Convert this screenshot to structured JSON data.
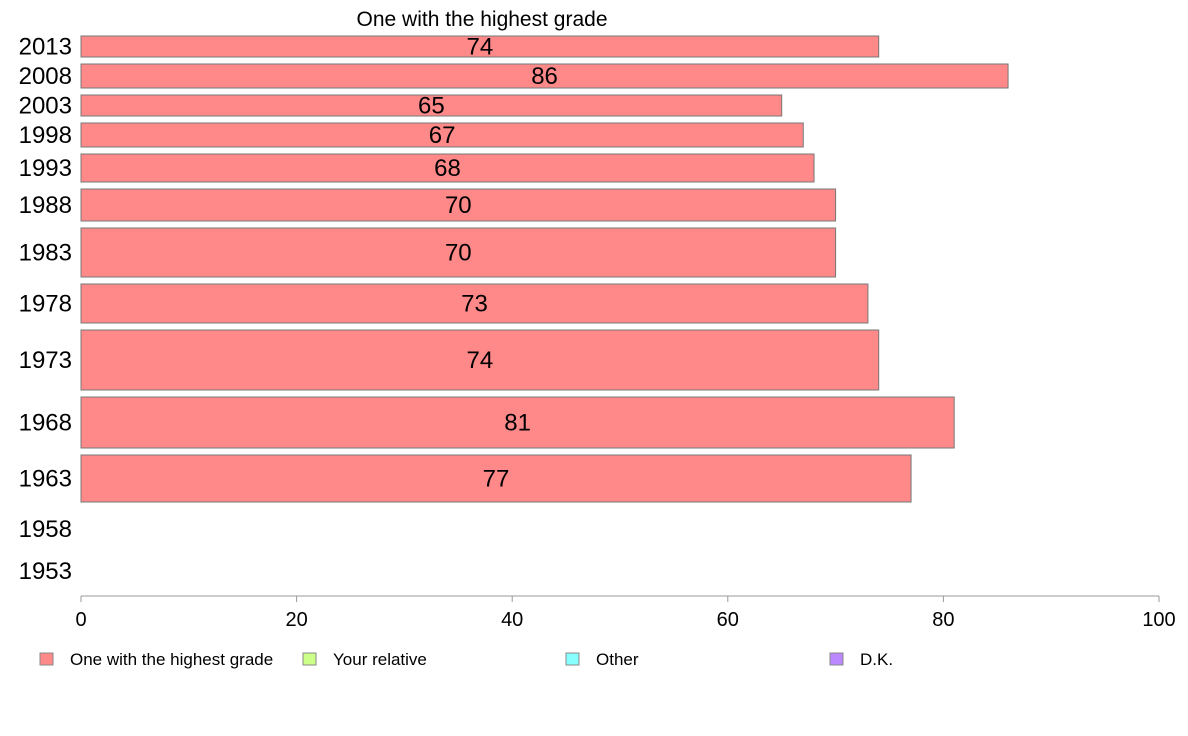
{
  "chart_data": {
    "type": "bar",
    "orientation": "horizontal",
    "title": "One with the highest grade",
    "categories": [
      "2013",
      "2008",
      "2003",
      "1998",
      "1993",
      "1988",
      "1983",
      "1978",
      "1973",
      "1968",
      "1963",
      "1958",
      "1953"
    ],
    "series": [
      {
        "name": "One with the highest grade",
        "color": "#ff8888",
        "values": [
          74,
          86,
          65,
          67,
          68,
          70,
          70,
          73,
          74,
          81,
          77,
          null,
          null
        ],
        "labels": [
          "74",
          "86",
          "65",
          "67",
          "68",
          "70",
          "70",
          "73",
          "74",
          "81",
          "77",
          "",
          ""
        ]
      }
    ],
    "xlim": [
      0,
      100
    ],
    "xticks": [
      0,
      20,
      40,
      60,
      80,
      100
    ],
    "xtick_labels": [
      "0",
      "20",
      "40",
      "60",
      "80",
      "100"
    ],
    "grid": false,
    "legend": {
      "placement": "bottom",
      "entries": [
        {
          "label": "One with the highest grade",
          "color": "#ff8888"
        },
        {
          "label": "Your relative",
          "color": "#ccff88"
        },
        {
          "label": "Other",
          "color": "#88ffff"
        },
        {
          "label": "D.K.",
          "color": "#bb88ff"
        }
      ]
    }
  }
}
